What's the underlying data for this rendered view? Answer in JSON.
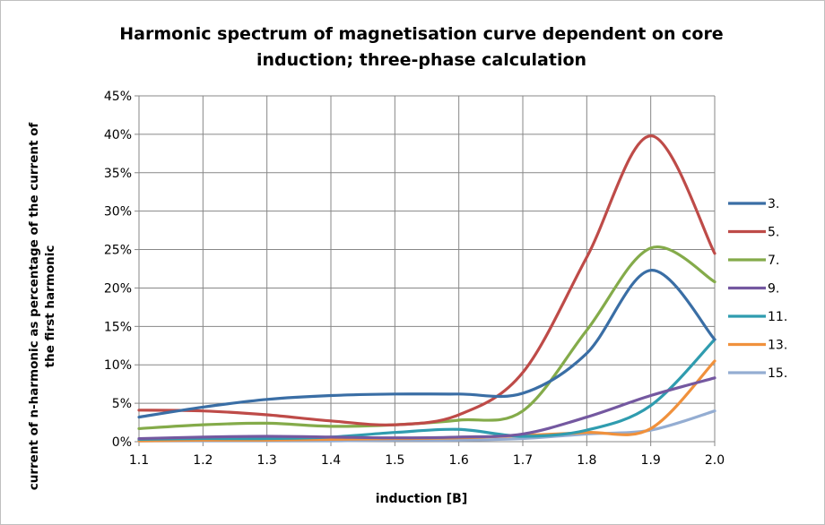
{
  "chart_data": {
    "type": "line",
    "title_line1": "Harmonic spectrum of magnetisation curve dependent on core",
    "title_line2": "induction; three-phase calculation",
    "xlabel": "induction [B]",
    "ylabel_line1": "current of n-harmonic as percentage of the current of",
    "ylabel_line2": "the first harmonic",
    "x": [
      1.1,
      1.2,
      1.3,
      1.4,
      1.5,
      1.6,
      1.7,
      1.8,
      1.9,
      2.0
    ],
    "x_tick_labels": [
      "1.1",
      "1.2",
      "1.3",
      "1.4",
      "1.5",
      "1.6",
      "1.7",
      "1.8",
      "1.9",
      "2.0"
    ],
    "ylim": [
      0,
      45
    ],
    "y_ticks": [
      0,
      5,
      10,
      15,
      20,
      25,
      30,
      35,
      40,
      45
    ],
    "y_tick_labels": [
      "0%",
      "5%",
      "10%",
      "15%",
      "20%",
      "25%",
      "30%",
      "35%",
      "40%",
      "45%"
    ],
    "grid": true,
    "legend_position": "right",
    "series": [
      {
        "name": "3.",
        "color": "#3a6ea5",
        "values": [
          3.2,
          4.5,
          5.5,
          6.0,
          6.2,
          6.2,
          6.3,
          11.5,
          22.3,
          13.3
        ]
      },
      {
        "name": "5.",
        "color": "#be4b48",
        "values": [
          4.1,
          4.0,
          3.5,
          2.7,
          2.2,
          3.5,
          9.0,
          24.0,
          39.8,
          24.5
        ]
      },
      {
        "name": "7.",
        "color": "#84ab4a",
        "values": [
          1.7,
          2.2,
          2.4,
          2.0,
          2.2,
          2.8,
          4.0,
          14.5,
          25.2,
          20.8
        ]
      },
      {
        "name": "9.",
        "color": "#7458a0",
        "values": [
          0.4,
          0.6,
          0.7,
          0.6,
          0.5,
          0.6,
          1.0,
          3.2,
          6.0,
          8.3
        ]
      },
      {
        "name": "11.",
        "color": "#2f9caf",
        "values": [
          0.3,
          0.4,
          0.4,
          0.6,
          1.2,
          1.6,
          0.7,
          1.5,
          4.7,
          13.3
        ]
      },
      {
        "name": "13.",
        "color": "#f0913c",
        "values": [
          0.1,
          0.2,
          0.2,
          0.3,
          0.4,
          0.5,
          0.8,
          1.2,
          1.7,
          10.5
        ]
      },
      {
        "name": "15.",
        "color": "#94add2",
        "values": [
          0.1,
          0.1,
          0.1,
          0.1,
          0.2,
          0.2,
          0.4,
          1.0,
          1.5,
          4.0
        ]
      }
    ]
  }
}
